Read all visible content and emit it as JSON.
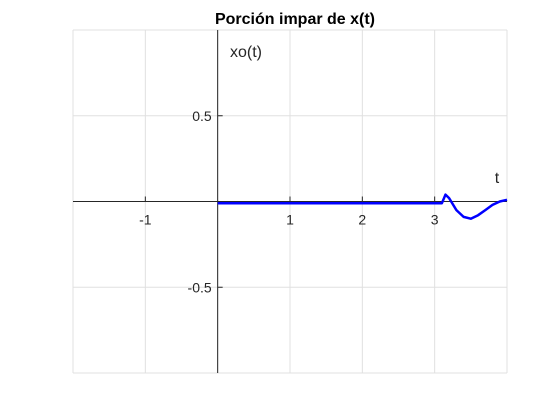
{
  "chart_data": {
    "type": "line",
    "title": "Porción impar de x(t)",
    "xlabel": "t",
    "ylabel": "xo(t)",
    "xlim": [
      -2,
      4
    ],
    "ylim": [
      -1,
      1
    ],
    "grid": true,
    "x_ticks": [
      -1,
      1,
      2,
      3
    ],
    "x_tick_labels": [
      "-1",
      "1",
      "2",
      "3"
    ],
    "y_ticks": [
      0.5,
      -0.5
    ],
    "y_tick_labels": [
      "0.5",
      "-0.5"
    ],
    "series": [
      {
        "color": "#0000ff",
        "x": [
          0,
          0.5,
          1,
          1.5,
          2,
          2.5,
          3,
          3.1,
          3.15,
          3.2,
          3.3,
          3.4,
          3.5,
          3.6,
          3.7,
          3.8,
          3.9,
          4.0
        ],
        "y": [
          -0.01,
          -0.01,
          -0.01,
          -0.01,
          -0.01,
          -0.01,
          -0.01,
          -0.01,
          0.04,
          0.02,
          -0.05,
          -0.09,
          -0.1,
          -0.08,
          -0.05,
          -0.02,
          0.0,
          0.01
        ]
      }
    ]
  }
}
